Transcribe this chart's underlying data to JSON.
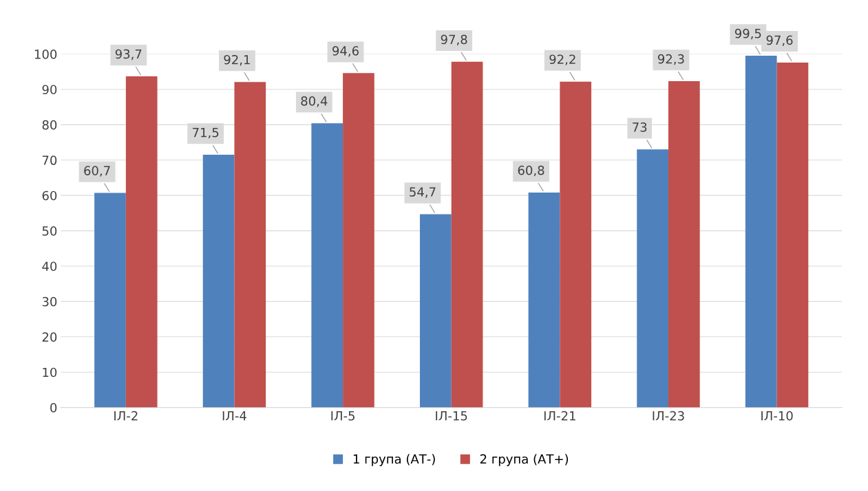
{
  "chart_data": {
    "type": "bar",
    "categories": [
      "ІЛ-2",
      "ІЛ-4",
      "ІЛ-5",
      "ІЛ-15",
      "ІЛ-21",
      "ІЛ-23",
      "ІЛ-10"
    ],
    "series": [
      {
        "name": "1 група (АТ-)",
        "color": "#4f81bd",
        "values": [
          60.7,
          71.5,
          80.4,
          54.7,
          60.8,
          73,
          99.5
        ],
        "value_labels": [
          "60,7",
          "71,5",
          "80,4",
          "54,7",
          "60,8",
          "73",
          "99,5"
        ]
      },
      {
        "name": "2 група (АТ+)",
        "color": "#c0504d",
        "values": [
          93.7,
          92.1,
          94.6,
          97.8,
          92.2,
          92.3,
          97.6
        ],
        "value_labels": [
          "93,7",
          "92,1",
          "94,6",
          "97,8",
          "92,2",
          "92,3",
          "97,6"
        ]
      }
    ],
    "ylim": [
      0,
      100
    ],
    "yticks": [
      0,
      10,
      20,
      30,
      40,
      50,
      60,
      70,
      80,
      90,
      100
    ],
    "grid": "y",
    "legend": "bottom"
  }
}
